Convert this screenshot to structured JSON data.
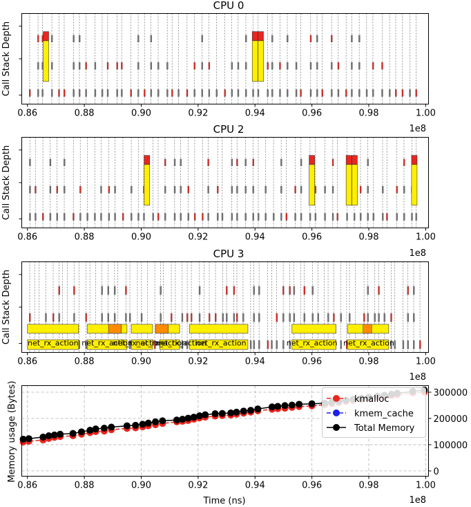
{
  "chart_data": [
    {
      "type": "flame",
      "title": "CPU 0",
      "ylabel": "Call Stack Depth",
      "xlim": [
        85800000,
        100100000
      ],
      "x_ticks": [
        "0.86",
        "0.88",
        "0.90",
        "0.92",
        "0.94",
        "0.96",
        "0.98",
        "1.00"
      ],
      "x_offset_label": "1e8"
    },
    {
      "type": "flame",
      "title": "CPU 2",
      "ylabel": "Call Stack Depth",
      "xlim": [
        85800000,
        100100000
      ],
      "x_ticks": [
        "0.86",
        "0.88",
        "0.90",
        "0.92",
        "0.94",
        "0.96",
        "0.98",
        "1.00"
      ],
      "x_offset_label": "1e8"
    },
    {
      "type": "flame",
      "title": "CPU 3",
      "ylabel": "Call Stack Depth",
      "xlim": [
        85800000,
        100100000
      ],
      "x_ticks": [
        "0.86",
        "0.88",
        "0.90",
        "0.92",
        "0.94",
        "0.96",
        "0.98",
        "1.00"
      ],
      "x_offset_label": "1e8",
      "bar_label": "net_rx_action",
      "bar_label_positions": [
        86.9,
        88.8,
        89.9,
        90.7,
        91.4,
        92.8,
        96.0,
        98.0
      ]
    },
    {
      "type": "line",
      "xlabel": "Time (ns)",
      "ylabel": "Memory usage (Bytes)",
      "xlim": [
        85800000,
        100100000
      ],
      "ylim": [
        -20000,
        325000
      ],
      "x_ticks": [
        "0.86",
        "0.88",
        "0.90",
        "0.92",
        "0.94",
        "0.96",
        "0.98",
        "1.00"
      ],
      "x_offset_label": "1e8",
      "y_ticks": [
        "0",
        "100000",
        "200000",
        "300000"
      ],
      "y_tick_values": [
        0,
        100000,
        200000,
        300000
      ],
      "grid": true,
      "legend_position": "top-right",
      "series": [
        {
          "name": "kmalloc",
          "color": "#e8271f",
          "x": [
            85.85,
            86.05,
            86.55,
            86.75,
            86.95,
            87.15,
            87.6,
            87.9,
            88.2,
            88.4,
            88.7,
            88.95,
            89.5,
            89.8,
            90.05,
            90.25,
            90.5,
            90.75,
            91.25,
            91.45,
            91.65,
            91.85,
            92.05,
            92.25,
            92.6,
            92.85,
            93.15,
            93.35,
            93.6,
            93.85,
            94.1,
            94.6,
            94.8,
            95.05,
            95.3,
            95.55,
            96.0,
            96.45,
            96.7,
            96.95,
            97.2,
            97.45,
            97.75,
            98.0,
            98.3,
            98.55,
            98.8,
            99.0,
            99.55,
            99.95
          ],
          "y": [
            110000,
            113000,
            118000,
            124000,
            128000,
            131000,
            134000,
            140000,
            146000,
            150000,
            152000,
            157000,
            162000,
            164000,
            168000,
            172000,
            176000,
            181000,
            187000,
            189000,
            192000,
            197000,
            202000,
            205000,
            209000,
            211000,
            213000,
            216000,
            220000,
            224000,
            229000,
            235000,
            237000,
            239000,
            242000,
            245000,
            248000,
            252000,
            256000,
            261000,
            265000,
            269000,
            273000,
            277000,
            280000,
            283000,
            287000,
            290000,
            297000,
            300000
          ]
        },
        {
          "name": "kmem_cache",
          "color": "#1f1fe8",
          "x": [],
          "y": []
        },
        {
          "name": "Total Memory",
          "color": "#000000",
          "x": [
            85.85,
            86.05,
            86.55,
            86.75,
            86.95,
            87.15,
            87.6,
            87.9,
            88.2,
            88.4,
            88.7,
            88.95,
            89.5,
            89.8,
            90.05,
            90.25,
            90.5,
            90.75,
            91.25,
            91.45,
            91.65,
            91.85,
            92.05,
            92.25,
            92.6,
            92.85,
            93.15,
            93.35,
            93.6,
            93.85,
            94.1,
            94.6,
            94.8,
            95.05,
            95.3,
            95.55,
            96.0,
            96.45,
            96.7,
            96.95,
            97.2,
            97.45,
            97.75,
            98.0,
            98.3,
            98.55,
            98.8,
            99.0,
            99.55,
            99.95
          ],
          "y": [
            121000,
            123000,
            129000,
            134000,
            137000,
            140000,
            143000,
            149000,
            155000,
            160000,
            163000,
            167000,
            172000,
            174000,
            178000,
            182000,
            187000,
            191000,
            194000,
            197000,
            201000,
            205000,
            210000,
            214000,
            218000,
            219000,
            221000,
            224000,
            228000,
            231000,
            236000,
            244000,
            246000,
            249000,
            251000,
            254000,
            256000,
            258000,
            261000,
            265000,
            269000,
            273000,
            277000,
            281000,
            285000,
            288000,
            292000,
            296000,
            303000,
            308000
          ]
        }
      ]
    }
  ]
}
